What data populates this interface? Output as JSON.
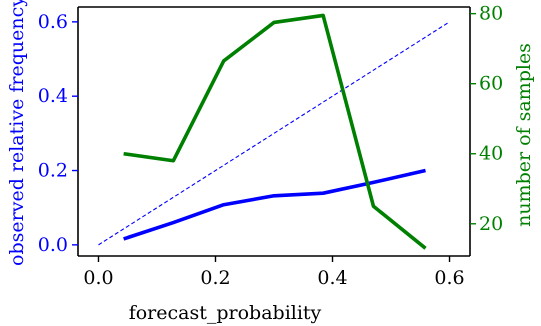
{
  "chart_data": {
    "type": "line",
    "xlabel": "forecast_probability",
    "ylabel_left": "observed relative frequency",
    "ylabel_right": "number of samples",
    "xlim": [
      -0.035,
      0.635
    ],
    "ylim_left": [
      -0.03,
      0.64
    ],
    "ylim_right": [
      10.8,
      81.9
    ],
    "x_ticks": [
      0.0,
      0.2,
      0.4,
      0.6
    ],
    "x_tick_labels": [
      "0.0",
      "0.2",
      "0.4",
      "0.6"
    ],
    "y_left_ticks": [
      0.0,
      0.2,
      0.4,
      0.6
    ],
    "y_left_tick_labels": [
      "0.0",
      "0.2",
      "0.4",
      "0.6"
    ],
    "y_right_ticks": [
      20,
      40,
      60,
      80
    ],
    "y_right_tick_labels": [
      "20",
      "40",
      "60",
      "80"
    ],
    "grid": false,
    "legend": "none",
    "series": [
      {
        "axis": "left",
        "style": "dashed",
        "color": "#0000ff",
        "x": [
          0.0,
          0.6
        ],
        "y": [
          0.0,
          0.6
        ]
      },
      {
        "axis": "left",
        "style": "solid",
        "color": "#0000ff",
        "x": [
          0.043,
          0.128,
          0.214,
          0.3,
          0.384,
          0.47,
          0.559
        ],
        "y": [
          0.016,
          0.06,
          0.108,
          0.132,
          0.139,
          0.168,
          0.2
        ]
      },
      {
        "axis": "right",
        "style": "solid",
        "color": "#008000",
        "x": [
          0.043,
          0.128,
          0.214,
          0.3,
          0.384,
          0.47,
          0.559
        ],
        "y": [
          40,
          38,
          66.5,
          77.5,
          79.5,
          25,
          13
        ]
      }
    ],
    "colors": {
      "left_axis": "#0000ff",
      "right_axis": "#008000",
      "frame": "#000000"
    }
  }
}
